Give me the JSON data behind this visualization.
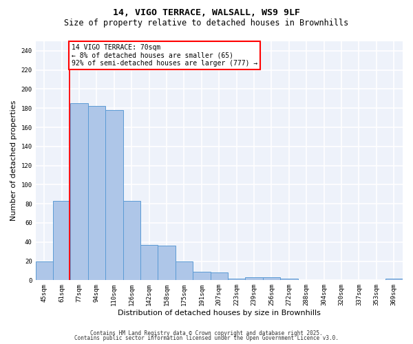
{
  "title1": "14, VIGO TERRACE, WALSALL, WS9 9LF",
  "title2": "Size of property relative to detached houses in Brownhills",
  "xlabel": "Distribution of detached houses by size in Brownhills",
  "ylabel": "Number of detached properties",
  "bins": [
    "45sqm",
    "61sqm",
    "77sqm",
    "94sqm",
    "110sqm",
    "126sqm",
    "142sqm",
    "158sqm",
    "175sqm",
    "191sqm",
    "207sqm",
    "223sqm",
    "239sqm",
    "256sqm",
    "272sqm",
    "288sqm",
    "304sqm",
    "320sqm",
    "337sqm",
    "353sqm",
    "369sqm"
  ],
  "values": [
    20,
    83,
    185,
    182,
    178,
    83,
    37,
    36,
    20,
    9,
    8,
    2,
    3,
    3,
    2,
    0,
    0,
    0,
    0,
    0,
    2
  ],
  "bar_color": "#aec6e8",
  "bar_edge_color": "#5b9bd5",
  "red_line_x": 1.45,
  "annotation_text": "14 VIGO TERRACE: 70sqm\n← 8% of detached houses are smaller (65)\n92% of semi-detached houses are larger (777) →",
  "annotation_box_color": "white",
  "annotation_box_edge": "red",
  "ylim": [
    0,
    250
  ],
  "yticks": [
    0,
    20,
    40,
    60,
    80,
    100,
    120,
    140,
    160,
    180,
    200,
    220,
    240
  ],
  "footer1": "Contains HM Land Registry data © Crown copyright and database right 2025.",
  "footer2": "Contains public sector information licensed under the Open Government Licence v3.0.",
  "bg_color": "#eef2fa",
  "grid_color": "white",
  "title1_fontsize": 9.5,
  "title2_fontsize": 8.5,
  "tick_fontsize": 6.5,
  "ylabel_fontsize": 8,
  "xlabel_fontsize": 8,
  "annotation_fontsize": 7,
  "footer_fontsize": 5.5
}
